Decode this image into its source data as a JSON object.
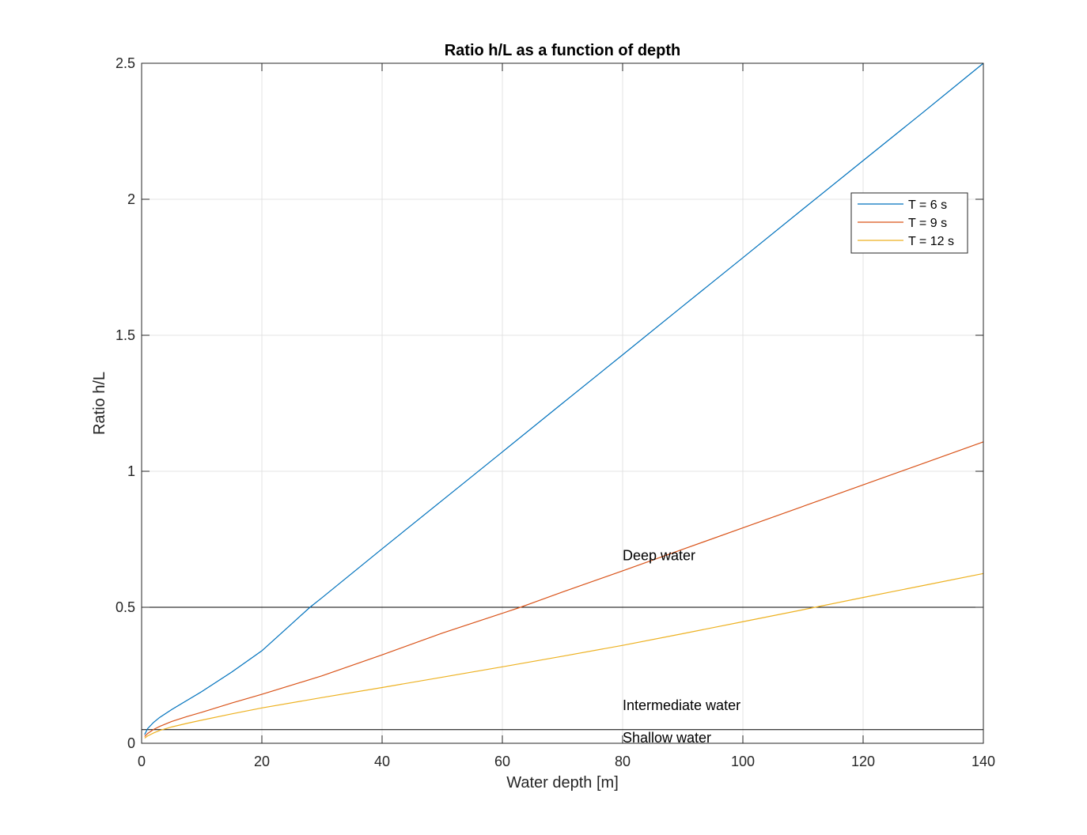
{
  "chart_data": {
    "type": "line",
    "title": "Ratio h/L as a function of depth",
    "xlabel": "Water depth [m]",
    "ylabel": "Ratio h/L",
    "xlim": [
      0,
      140
    ],
    "ylim": [
      0,
      2.5
    ],
    "xticks": [
      0,
      20,
      40,
      60,
      80,
      100,
      120,
      140
    ],
    "yticks": [
      0,
      0.5,
      1,
      1.5,
      2,
      2.5
    ],
    "xtick_labels": [
      "0",
      "20",
      "40",
      "60",
      "80",
      "100",
      "120",
      "140"
    ],
    "ytick_labels": [
      "0",
      "0.5",
      "1",
      "1.5",
      "2",
      "2.5"
    ],
    "grid": true,
    "legend_position": "top-right",
    "series": [
      {
        "name": "T = 6 s",
        "color": "#0072bd",
        "x": [
          0.5,
          1,
          2,
          3,
          5,
          7.5,
          10,
          15,
          20,
          25,
          28,
          30,
          40,
          50,
          60,
          70,
          80,
          90,
          100,
          110,
          120,
          130,
          140
        ],
        "y": [
          0.032,
          0.054,
          0.077,
          0.095,
          0.124,
          0.157,
          0.19,
          0.262,
          0.34,
          0.44,
          0.5,
          0.535,
          0.715,
          0.893,
          1.071,
          1.25,
          1.428,
          1.607,
          1.785,
          1.964,
          2.142,
          2.32,
          2.5
        ]
      },
      {
        "name": "T = 9 s",
        "color": "#d95319",
        "x": [
          0.5,
          1,
          2,
          3,
          5,
          7.5,
          10,
          15,
          20,
          30,
          40,
          50,
          60,
          63,
          70,
          80,
          90,
          100,
          110,
          120,
          130,
          140
        ],
        "y": [
          0.025,
          0.036,
          0.051,
          0.062,
          0.08,
          0.098,
          0.114,
          0.148,
          0.18,
          0.248,
          0.325,
          0.405,
          0.478,
          0.5,
          0.556,
          0.634,
          0.713,
          0.792,
          0.871,
          0.95,
          1.029,
          1.108
        ]
      },
      {
        "name": "T = 12 s",
        "color": "#edb120",
        "x": [
          0.5,
          1,
          2,
          3,
          5,
          7.5,
          10,
          15,
          20,
          30,
          40,
          50,
          60,
          70,
          80,
          90,
          100,
          110,
          112,
          120,
          130,
          140
        ],
        "y": [
          0.019,
          0.027,
          0.038,
          0.047,
          0.06,
          0.073,
          0.085,
          0.108,
          0.13,
          0.168,
          0.205,
          0.243,
          0.281,
          0.32,
          0.36,
          0.403,
          0.447,
          0.491,
          0.5,
          0.536,
          0.58,
          0.624
        ]
      }
    ],
    "reference_lines": [
      {
        "y": 0.5,
        "color": "#000000"
      },
      {
        "y": 0.05,
        "color": "#000000"
      }
    ],
    "annotations": [
      {
        "text": "Deep water",
        "x": 80,
        "y": 0.69
      },
      {
        "text": "Intermediate water",
        "x": 80,
        "y": 0.14
      },
      {
        "text": "Shallow water",
        "x": 80,
        "y": 0.02
      }
    ]
  }
}
